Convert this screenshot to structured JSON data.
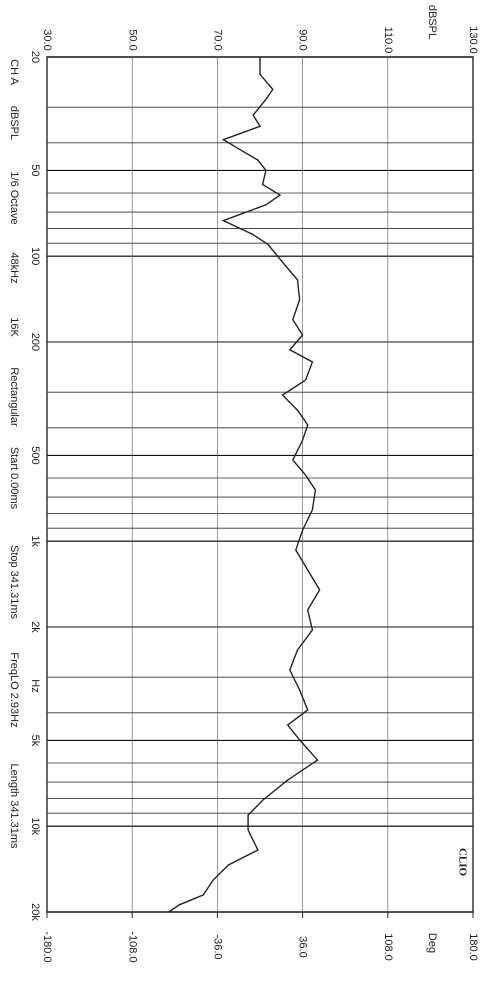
{
  "chart_data": {
    "type": "line",
    "logo": "CLIO",
    "x_label": "Hz",
    "y_label": "dBSPL",
    "y2_label": "Deg",
    "info": [
      "CH A",
      "dBSPL",
      "1/6 Octave",
      "48kHz",
      "16K",
      "Rectangular",
      "Start 0.00ms",
      "Stop 341.31ms",
      "FreqLO 2.93Hz",
      "Length 341.31ms"
    ],
    "x_log": true,
    "grid": true,
    "color": "#222222",
    "xlim": [
      20,
      20000
    ],
    "xticks": [
      20,
      50,
      100,
      200,
      500,
      {
        "value": 1000,
        "label": "1k"
      },
      {
        "value": 2000,
        "label": "2k"
      },
      {
        "value": 5000,
        "label": "5k"
      },
      {
        "value": 10000,
        "label": "10k"
      },
      {
        "value": 20000,
        "label": "20k"
      }
    ],
    "ylim": [
      30,
      130
    ],
    "yticks": [
      {
        "value": 30,
        "label": "30.0"
      },
      {
        "value": 50,
        "label": "50.0"
      },
      {
        "value": 70,
        "label": "70.0"
      },
      {
        "value": 90,
        "label": "90.0"
      },
      {
        "value": 110,
        "label": "110.0"
      },
      {
        "value": 130,
        "label": "130.0"
      }
    ],
    "y2lim": [
      -180,
      180
    ],
    "y2ticks": [
      {
        "value": -180,
        "label": "-180.0"
      },
      {
        "value": -108,
        "label": "-108.0"
      },
      {
        "value": -36,
        "label": "-36.0"
      },
      {
        "value": 36,
        "label": "36.0"
      },
      {
        "value": 108,
        "label": "108.0"
      },
      {
        "value": 180,
        "label": "180.0"
      }
    ],
    "x": [
      20,
      23,
      26,
      28,
      32,
      35,
      39,
      42,
      46,
      50,
      56,
      61,
      66,
      75,
      84,
      91,
      105,
      121,
      142,
      167,
      189,
      213,
      235,
      272,
      307,
      347,
      391,
      442,
      519,
      586,
      661,
      776,
      914,
      1074,
      1262,
      1482,
      1742,
      2048,
      2408,
      2831,
      3327,
      3910,
      4416,
      4979,
      5861,
      6888,
      8092,
      9141,
      10305,
      12116,
      13678,
      15446,
      17420,
      18888,
      20000
    ],
    "values": [
      80,
      80,
      83,
      81.5,
      78.4,
      80,
      71.4,
      75,
      79.5,
      81.4,
      80.6,
      84.7,
      81.4,
      71.4,
      78.4,
      81.9,
      85.3,
      88.8,
      89.3,
      87.7,
      90,
      87,
      92.3,
      90.7,
      85.3,
      88.8,
      91.2,
      90,
      87.7,
      90.7,
      93,
      92.3,
      90,
      88.4,
      91.2,
      94,
      91.2,
      92.3,
      88.8,
      87,
      89.3,
      91.2,
      86.5,
      89.3,
      93.5,
      86.5,
      80.7,
      77.2,
      77.2,
      79.5,
      72.6,
      69,
      66.7,
      61,
      58.6
    ]
  }
}
